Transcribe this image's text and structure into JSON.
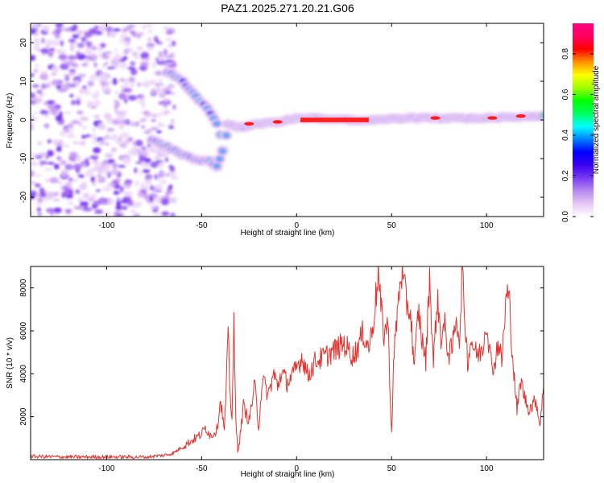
{
  "title": "PAZ1.2025.271.20.21.G06",
  "colors": {
    "snr_line": "#e8322d",
    "colormap": [
      "#ffffff",
      "#e6c8f6",
      "#b68af0",
      "#7a3af2",
      "#3a00f0",
      "#0000ff",
      "#0080ff",
      "#00ffff",
      "#00ff60",
      "#00ff00",
      "#a0ff00",
      "#ffff00",
      "#ff9000",
      "#ff0000",
      "#ff0060",
      "#ff0080"
    ]
  },
  "chart_data": [
    {
      "type": "heatmap",
      "title": "PAZ1.2025.271.20.21.G06",
      "xlabel": "Height of straight line (km)",
      "ylabel": "Frequency (Hz)",
      "xlim": [
        -140,
        130
      ],
      "ylim": [
        -25,
        25
      ],
      "xticks": [
        -100,
        -50,
        0,
        50,
        100
      ],
      "xtick_labels": [
        "-100",
        "-50",
        "0",
        "50",
        "100"
      ],
      "yticks": [
        -20,
        -10,
        0,
        10,
        20
      ],
      "ytick_labels": [
        "-20",
        "-10",
        "0",
        "10",
        "20"
      ],
      "colorbar": {
        "label": "Normalized spectral amplitude",
        "range": [
          0,
          0.95
        ],
        "ticks": [
          0,
          0.2,
          0.4,
          0.6,
          0.8
        ],
        "tick_labels": [
          "0.0",
          "0.2",
          "0.4",
          "0.6",
          "0.8"
        ]
      },
      "features": [
        {
          "name": "noise region",
          "x_range": [
            -140,
            -68
          ],
          "freq_range": [
            -25,
            25
          ],
          "amplitude": 0.08
        },
        {
          "name": "upper branch",
          "points": [
            [
              -68,
              12.5
            ],
            [
              -60,
              10
            ],
            [
              -53,
              6
            ],
            [
              -47,
              3
            ],
            [
              -42,
              -1
            ],
            [
              -40,
              -4
            ]
          ],
          "amplitude": 0.3
        },
        {
          "name": "lower branch",
          "points": [
            [
              -76,
              -5
            ],
            [
              -68,
              -7
            ],
            [
              -60,
              -9
            ],
            [
              -52,
              -10.5
            ],
            [
              -46,
              -10.5
            ],
            [
              -42,
              -12
            ],
            [
              -39,
              -8
            ],
            [
              -37,
              -4
            ]
          ],
          "amplitude": 0.3
        },
        {
          "name": "carrier",
          "points": [
            [
              -36,
              -1
            ],
            [
              -30,
              -2
            ],
            [
              -20,
              -1
            ],
            [
              -10,
              -0.5
            ],
            [
              0,
              0.5
            ],
            [
              10,
              0.5
            ],
            [
              20,
              0
            ],
            [
              40,
              0
            ],
            [
              60,
              0.5
            ],
            [
              80,
              0.5
            ],
            [
              100,
              0.5
            ],
            [
              130,
              1
            ]
          ],
          "amplitude": 0.85
        }
      ]
    },
    {
      "type": "line",
      "xlabel": "Height of straight line (km)",
      "ylabel": "SNR (10 * v/v)",
      "xlim": [
        -140,
        130
      ],
      "ylim": [
        0,
        9000
      ],
      "xticks": [
        -100,
        -50,
        0,
        50,
        100
      ],
      "xtick_labels": [
        "-100",
        "-50",
        "0",
        "50",
        "100"
      ],
      "yticks": [
        2000,
        4000,
        6000,
        8000
      ],
      "ytick_labels": [
        "2000",
        "4000",
        "6000",
        "8000"
      ],
      "series": [
        {
          "name": "SNR",
          "x": [
            -140,
            -120,
            -100,
            -80,
            -70,
            -65,
            -60,
            -55,
            -50,
            -48,
            -45,
            -42,
            -40,
            -38,
            -36,
            -35,
            -34,
            -33,
            -32,
            -31,
            -30,
            -28,
            -25,
            -22,
            -20,
            -18,
            -15,
            -12,
            -10,
            -8,
            -5,
            -2,
            0,
            3,
            6,
            10,
            15,
            20,
            25,
            30,
            35,
            38,
            40,
            42,
            43,
            44,
            46,
            48,
            50,
            51,
            52,
            55,
            58,
            60,
            62,
            64,
            66,
            68,
            70,
            72,
            74,
            76,
            78,
            80,
            82,
            84,
            86,
            87,
            88,
            90,
            92,
            94,
            96,
            98,
            100,
            102,
            104,
            106,
            108,
            110,
            111,
            112,
            114,
            116,
            118,
            120,
            122,
            124,
            126,
            128,
            130
          ],
          "y": [
            150,
            120,
            130,
            120,
            200,
            300,
            600,
            900,
            1200,
            1500,
            1100,
            1400,
            2800,
            1300,
            5800,
            3000,
            2000,
            6200,
            1800,
            500,
            900,
            2500,
            1800,
            3500,
            1500,
            3800,
            3000,
            4000,
            3400,
            4100,
            3600,
            3900,
            4300,
            4800,
            3900,
            4600,
            4800,
            5100,
            5400,
            4800,
            5900,
            5200,
            6200,
            7800,
            8700,
            7400,
            5800,
            6500,
            1200,
            4300,
            5800,
            8800,
            7300,
            6800,
            4200,
            7000,
            5600,
            4600,
            8600,
            4500,
            7500,
            5700,
            6200,
            4900,
            5200,
            6800,
            5400,
            8900,
            7400,
            4600,
            5600,
            5000,
            4900,
            5300,
            6500,
            4700,
            4300,
            5500,
            4600,
            7200,
            7800,
            7300,
            4400,
            2300,
            3700,
            2900,
            2400,
            2500,
            2800,
            1600,
            3400
          ]
        }
      ]
    }
  ]
}
